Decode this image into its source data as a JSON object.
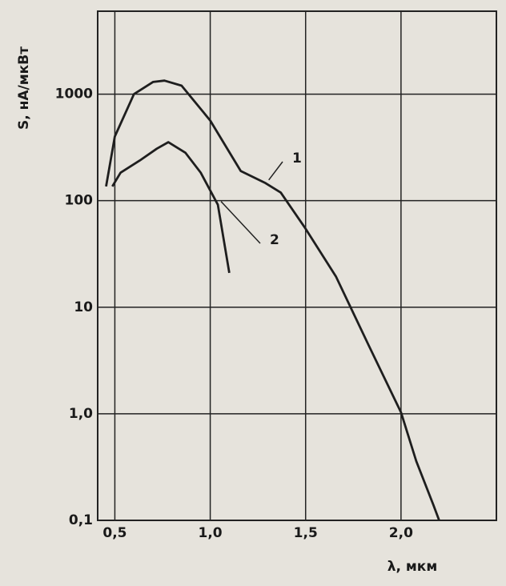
{
  "chart_data": {
    "type": "line",
    "x_label": "λ, мкм",
    "y_label": "S, нА/мкВт",
    "log_y": true,
    "grid": true,
    "xlim": [
      0.41,
      2.5
    ],
    "ylim": [
      0.1,
      6000
    ],
    "xticks": [
      {
        "value": 0.5,
        "label": "0,5"
      },
      {
        "value": 1.0,
        "label": "1,0"
      },
      {
        "value": 1.5,
        "label": "1,5"
      },
      {
        "value": 2.0,
        "label": "2,0"
      },
      2.5
    ],
    "yticks": [
      {
        "value": 0.1,
        "label": "0,1"
      },
      {
        "value": 1,
        "label": "1,0"
      },
      10,
      100,
      1000
    ],
    "series": [
      {
        "name": "1",
        "color": "#1e1e1e",
        "x": [
          0.454,
          0.5,
          0.6,
          0.7,
          0.76,
          0.85,
          1.0,
          1.16,
          1.29,
          1.37,
          1.5,
          1.66,
          1.83,
          2.0,
          2.08,
          2.17,
          2.2
        ],
        "values": [
          136,
          400,
          1000,
          1300,
          1340,
          1200,
          565,
          190,
          146,
          119,
          54.6,
          19.3,
          4.4,
          1.03,
          0.36,
          0.139,
          0.1
        ]
      },
      {
        "name": "2",
        "color": "#1e1e1e",
        "x": [
          0.487,
          0.53,
          0.63,
          0.72,
          0.78,
          0.87,
          0.95,
          1.04,
          1.1
        ],
        "values": [
          136,
          183,
          238,
          308,
          354,
          282,
          183,
          91.7,
          21
        ]
      }
    ]
  }
}
